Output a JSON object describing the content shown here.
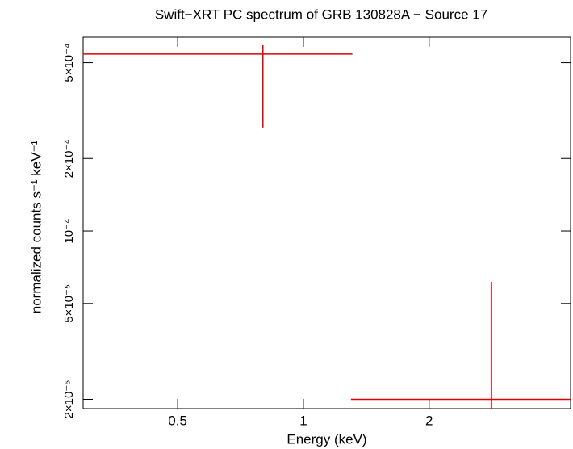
{
  "chart_data": {
    "type": "errorbar",
    "title": "Swift−XRT PC spectrum of GRB 130828A − Source 17",
    "xlabel": "Energy (keV)",
    "ylabel": "normalized counts s⁻¹ keV⁻¹",
    "xscale": "log",
    "yscale": "log",
    "xlim": [
      0.297,
      4.36
    ],
    "ylim": [
      1.83e-05,
      0.000638
    ],
    "xticks": [
      0.5,
      1,
      2
    ],
    "yticks": [
      {
        "value": 2e-05,
        "label": "2×10⁻⁵"
      },
      {
        "value": 5e-05,
        "label": "5×10⁻⁵"
      },
      {
        "value": 0.0001,
        "label": "10⁻⁴"
      },
      {
        "value": 0.0002,
        "label": "2×10⁻⁴"
      },
      {
        "value": 0.0005,
        "label": "5×10⁻⁴"
      }
    ],
    "series": [
      {
        "color": "#e00000",
        "x": [
          0.8,
          2.82
        ],
        "x_low": [
          0.297,
          1.3
        ],
        "x_high": [
          1.31,
          4.36
        ],
        "values": [
          0.000543,
          2e-05
        ],
        "y_low": [
          0.000269,
          1.8e-05
        ],
        "y_high": [
          0.000591,
          6.15e-05
        ]
      }
    ]
  }
}
